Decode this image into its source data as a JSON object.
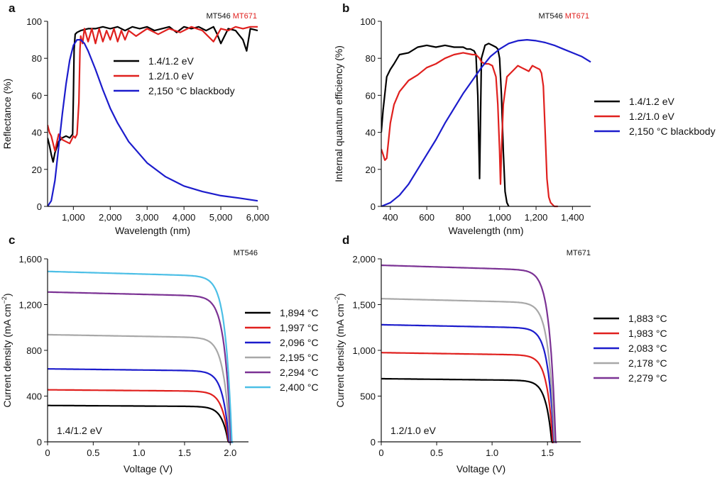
{
  "figure": {
    "title": ""
  },
  "chart_data": [
    {
      "panel": "a",
      "type": "line",
      "tag": [
        {
          "text": "MT546",
          "color": "#111111"
        },
        {
          "text": "MT671",
          "color": "#e0201e"
        }
      ],
      "xlabel": "Wavelength (nm)",
      "ylabel": "Reflectance (%)",
      "xlim": [
        300,
        6000
      ],
      "ylim": [
        0,
        100
      ],
      "xticks": [
        1000,
        2000,
        3000,
        4000,
        5000,
        6000
      ],
      "xticklabels": [
        "1,000",
        "2,000",
        "3,000",
        "4,000",
        "5,000",
        "6,000"
      ],
      "yticks": [
        0,
        20,
        40,
        60,
        80,
        100
      ],
      "yticklabels": [
        "0",
        "20",
        "40",
        "60",
        "80",
        "100"
      ],
      "legend_position": "center",
      "series": [
        {
          "name": "1.4/1.2 eV",
          "color": "#000000",
          "x": [
            300,
            350,
            400,
            450,
            500,
            600,
            700,
            800,
            900,
            980,
            1000,
            1020,
            1050,
            1100,
            1200,
            1400,
            1600,
            1800,
            2000,
            2200,
            2400,
            2600,
            2800,
            3000,
            3200,
            3400,
            3600,
            3800,
            4000,
            4200,
            4400,
            4600,
            4800,
            4900,
            5000,
            5200,
            5400,
            5600,
            5700,
            5800,
            6000
          ],
          "y": [
            37,
            33,
            28,
            24,
            29,
            35,
            37,
            38,
            37,
            39,
            60,
            85,
            93,
            94,
            95,
            96,
            96,
            97,
            96,
            97,
            95,
            97,
            96,
            97,
            95,
            96,
            97,
            94,
            97,
            96,
            97,
            95,
            97,
            93,
            88,
            96,
            95,
            90,
            84,
            96,
            95
          ]
        },
        {
          "name": "1.2/1.0 eV",
          "color": "#e0201e",
          "x": [
            300,
            350,
            400,
            450,
            500,
            600,
            700,
            800,
            900,
            1000,
            1050,
            1100,
            1150,
            1180,
            1200,
            1250,
            1300,
            1400,
            1500,
            1600,
            1700,
            1800,
            1900,
            2000,
            2100,
            2200,
            2300,
            2400,
            2500,
            2700,
            3000,
            3300,
            3600,
            3900,
            4200,
            4500,
            4800,
            5000,
            5200,
            5400,
            5600,
            5800,
            6000
          ],
          "y": [
            44,
            40,
            38,
            34,
            30,
            39,
            36,
            35,
            34,
            38,
            37,
            39,
            56,
            85,
            92,
            88,
            96,
            89,
            96,
            88,
            96,
            89,
            95,
            90,
            96,
            89,
            95,
            90,
            95,
            92,
            96,
            93,
            96,
            94,
            97,
            95,
            89,
            96,
            95,
            97,
            96,
            97,
            97
          ]
        },
        {
          "name": "2,150 °C blackbody",
          "color": "#1c1ccc",
          "x": [
            300,
            400,
            500,
            600,
            700,
            800,
            900,
            1000,
            1100,
            1200,
            1300,
            1400,
            1600,
            1800,
            2000,
            2200,
            2500,
            3000,
            3500,
            4000,
            4500,
            5000,
            5500,
            6000
          ],
          "y": [
            0,
            3,
            14,
            32,
            50,
            66,
            79,
            87,
            90,
            90,
            88,
            84,
            74,
            63,
            53,
            45,
            35,
            23.5,
            16,
            11,
            8,
            5.8,
            4.5,
            3
          ]
        }
      ]
    },
    {
      "panel": "b",
      "type": "line",
      "tag": [
        {
          "text": "MT546",
          "color": "#111111"
        },
        {
          "text": "MT671",
          "color": "#e0201e"
        }
      ],
      "xlabel": "Wavelength (nm)",
      "ylabel": "Internal quantum efficiency (%)",
      "xlim": [
        350,
        1500
      ],
      "ylim": [
        0,
        100
      ],
      "xticks": [
        400,
        600,
        800,
        1000,
        1200,
        1400
      ],
      "xticklabels": [
        "400",
        "600",
        "800",
        "1,000",
        "1,200",
        "1,400"
      ],
      "yticks": [
        0,
        20,
        40,
        60,
        80,
        100
      ],
      "yticklabels": [
        "0",
        "20",
        "40",
        "60",
        "80",
        "100"
      ],
      "legend_position": "right",
      "series": [
        {
          "name": "1.4/1.2 eV",
          "color": "#000000",
          "x": [
            350,
            360,
            380,
            400,
            420,
            450,
            500,
            550,
            600,
            650,
            700,
            750,
            800,
            820,
            840,
            860,
            870,
            880,
            890,
            900,
            920,
            940,
            960,
            980,
            990,
            1000,
            1010,
            1020,
            1030,
            1040,
            1050
          ],
          "y": [
            40,
            52,
            70,
            74,
            77,
            82,
            83,
            86,
            87,
            86,
            87,
            86,
            86,
            85,
            85,
            84,
            82,
            60,
            15,
            80,
            87,
            88,
            87,
            86,
            85,
            80,
            60,
            30,
            8,
            2,
            0
          ]
        },
        {
          "name": "1.2/1.0 eV",
          "color": "#e0201e",
          "x": [
            350,
            360,
            370,
            380,
            400,
            420,
            450,
            500,
            550,
            600,
            650,
            700,
            750,
            800,
            850,
            870,
            880,
            890,
            900,
            920,
            940,
            960,
            980,
            990,
            1000,
            1005,
            1010,
            1020,
            1040,
            1060,
            1080,
            1100,
            1120,
            1140,
            1160,
            1180,
            1200,
            1220,
            1230,
            1240,
            1250,
            1260,
            1270,
            1280,
            1290,
            1300,
            1320
          ],
          "y": [
            31,
            28,
            25,
            26,
            45,
            55,
            62,
            68,
            71,
            75,
            77,
            80,
            82,
            83,
            82,
            82,
            81,
            80,
            78,
            77,
            77,
            76,
            70,
            55,
            30,
            12,
            30,
            55,
            70,
            72,
            74,
            76,
            75,
            74,
            73,
            76,
            75,
            74,
            72,
            65,
            40,
            15,
            5,
            2,
            1,
            0,
            0
          ]
        },
        {
          "name": "2,150 °C blackbody",
          "color": "#1c1ccc",
          "x": [
            350,
            400,
            450,
            500,
            550,
            600,
            650,
            700,
            750,
            800,
            850,
            900,
            950,
            1000,
            1050,
            1100,
            1150,
            1200,
            1250,
            1300,
            1350,
            1400,
            1450,
            1500
          ],
          "y": [
            0,
            2,
            6,
            12,
            20,
            28,
            36,
            45,
            53,
            61,
            68,
            75,
            81,
            85,
            88,
            89.5,
            90,
            89.5,
            88.5,
            87,
            85,
            83,
            81,
            78
          ]
        }
      ]
    },
    {
      "panel": "c",
      "type": "line",
      "tag": [
        {
          "text": "MT546",
          "color": "#111111"
        }
      ],
      "annotation": "1.4/1.2 eV",
      "xlabel": "Voltage (V)",
      "ylabel": "Current density (mA cm−2)",
      "xlim": [
        0,
        2.2
      ],
      "ylim": [
        0,
        1600
      ],
      "xticks": [
        0,
        0.5,
        1,
        1.5,
        2
      ],
      "xticklabels": [
        "0",
        "0.5",
        "1.0",
        "1.5",
        "2.0"
      ],
      "yticks": [
        0,
        400,
        800,
        1200,
        1600
      ],
      "yticklabels": [
        "0",
        "400",
        "800",
        "1,200",
        "1,600"
      ],
      "legend_position": "right",
      "series": [
        {
          "name": "1,894 °C",
          "color": "#000000",
          "jsc": 318,
          "voc": 1.98
        },
        {
          "name": "1,997 °C",
          "color": "#e0201e",
          "jsc": 455,
          "voc": 1.985
        },
        {
          "name": "2,096 °C",
          "color": "#1c1ccc",
          "jsc": 638,
          "voc": 1.99
        },
        {
          "name": "2,195 °C",
          "color": "#a8a8a8",
          "jsc": 937,
          "voc": 2.0
        },
        {
          "name": "2,294 °C",
          "color": "#7b3294",
          "jsc": 1310,
          "voc": 2.01
        },
        {
          "name": "2,400 °C",
          "color": "#4cbfe6",
          "jsc": 1490,
          "voc": 2.02
        }
      ]
    },
    {
      "panel": "d",
      "type": "line",
      "tag": [
        {
          "text": "MT671",
          "color": "#111111"
        }
      ],
      "annotation": "1.2/1.0 eV",
      "xlabel": "Voltage (V)",
      "ylabel": "Current density (mA cm−2)",
      "xlim": [
        0,
        1.8
      ],
      "ylim": [
        0,
        2000
      ],
      "xticks": [
        0,
        0.5,
        1,
        1.5
      ],
      "xticklabels": [
        "0",
        "0.5",
        "1.0",
        "1.5"
      ],
      "yticks": [
        0,
        500,
        1000,
        1500,
        2000
      ],
      "yticklabels": [
        "0",
        "500",
        "1,000",
        "1,500",
        "2,000"
      ],
      "legend_position": "right",
      "series": [
        {
          "name": "1,883 °C",
          "color": "#000000",
          "jsc": 690,
          "voc": 1.54
        },
        {
          "name": "1,983 °C",
          "color": "#e0201e",
          "jsc": 975,
          "voc": 1.55
        },
        {
          "name": "2,083 °C",
          "color": "#1c1ccc",
          "jsc": 1280,
          "voc": 1.56
        },
        {
          "name": "2,178 °C",
          "color": "#a8a8a8",
          "jsc": 1565,
          "voc": 1.565
        },
        {
          "name": "2,279 °C",
          "color": "#7b3294",
          "jsc": 1930,
          "voc": 1.575
        }
      ]
    }
  ]
}
